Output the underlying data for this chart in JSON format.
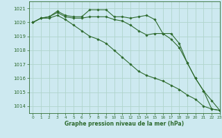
{
  "background_color": "#cde9f0",
  "grid_color": "#b0d4cc",
  "line_color": "#2d6a2d",
  "xlabel": "Graphe pression niveau de la mer (hPa)",
  "ylim": [
    1013.5,
    1021.5
  ],
  "xlim": [
    -0.5,
    23
  ],
  "yticks": [
    1014,
    1015,
    1016,
    1017,
    1018,
    1019,
    1020,
    1021
  ],
  "xticks": [
    0,
    1,
    2,
    3,
    4,
    5,
    6,
    7,
    8,
    9,
    10,
    11,
    12,
    13,
    14,
    15,
    16,
    17,
    18,
    19,
    20,
    21,
    22,
    23
  ],
  "series": [
    [
      1020.0,
      1020.3,
      1020.4,
      1020.8,
      1020.5,
      1020.4,
      1020.4,
      1020.9,
      1020.9,
      1020.9,
      1020.4,
      1020.4,
      1020.3,
      1020.4,
      1020.5,
      1020.2,
      1019.2,
      1019.2,
      1018.5,
      1017.1,
      1016.0,
      1015.1,
      1013.8,
      1013.7
    ],
    [
      1020.0,
      1020.3,
      1020.4,
      1020.7,
      1020.4,
      1020.3,
      1020.3,
      1020.4,
      1020.4,
      1020.4,
      1020.2,
      1020.1,
      1019.8,
      1019.4,
      1019.1,
      1019.2,
      1019.2,
      1018.8,
      1018.2,
      1017.1,
      1016.0,
      1015.1,
      1014.4,
      1013.7
    ],
    [
      1020.0,
      1020.3,
      1020.3,
      1020.5,
      1020.2,
      1019.8,
      1019.4,
      1019.0,
      1018.8,
      1018.5,
      1018.0,
      1017.5,
      1017.0,
      1016.5,
      1016.2,
      1016.0,
      1015.8,
      1015.5,
      1015.2,
      1014.8,
      1014.5,
      1014.0,
      1013.8,
      1013.7
    ]
  ]
}
